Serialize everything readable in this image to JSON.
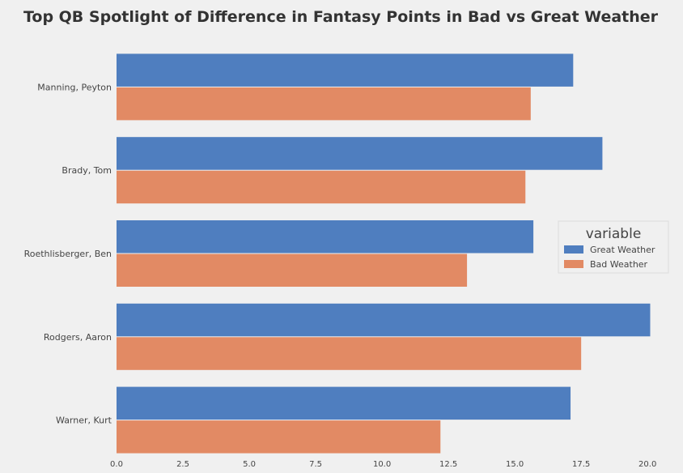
{
  "chart_data": {
    "type": "bar",
    "orientation": "horizontal",
    "title": "Top QB Spotlight of Difference in Fantasy Points in Bad vs Great Weather",
    "xlabel": "",
    "ylabel": "",
    "categories": [
      "Manning, Peyton",
      "Brady, Tom",
      "Roethlisberger, Ben",
      "Rodgers, Aaron",
      "Warner, Kurt"
    ],
    "series": [
      {
        "name": "Great Weather",
        "color": "#4f7ebf",
        "values": [
          17.2,
          18.3,
          15.7,
          20.1,
          17.1
        ]
      },
      {
        "name": "Bad Weather",
        "color": "#e28a64",
        "values": [
          15.6,
          15.4,
          13.2,
          17.5,
          12.2
        ]
      }
    ],
    "xlim": [
      0,
      21
    ],
    "xticks": [
      0,
      2.5,
      5,
      7.5,
      10,
      12.5,
      15,
      17.5,
      20
    ],
    "xtick_labels": [
      "0.0",
      "2.5",
      "5.0",
      "7.5",
      "10.0",
      "12.5",
      "15.0",
      "17.5",
      "20.0"
    ],
    "grid": false,
    "legend": {
      "title": "variable",
      "placement": "right"
    }
  }
}
